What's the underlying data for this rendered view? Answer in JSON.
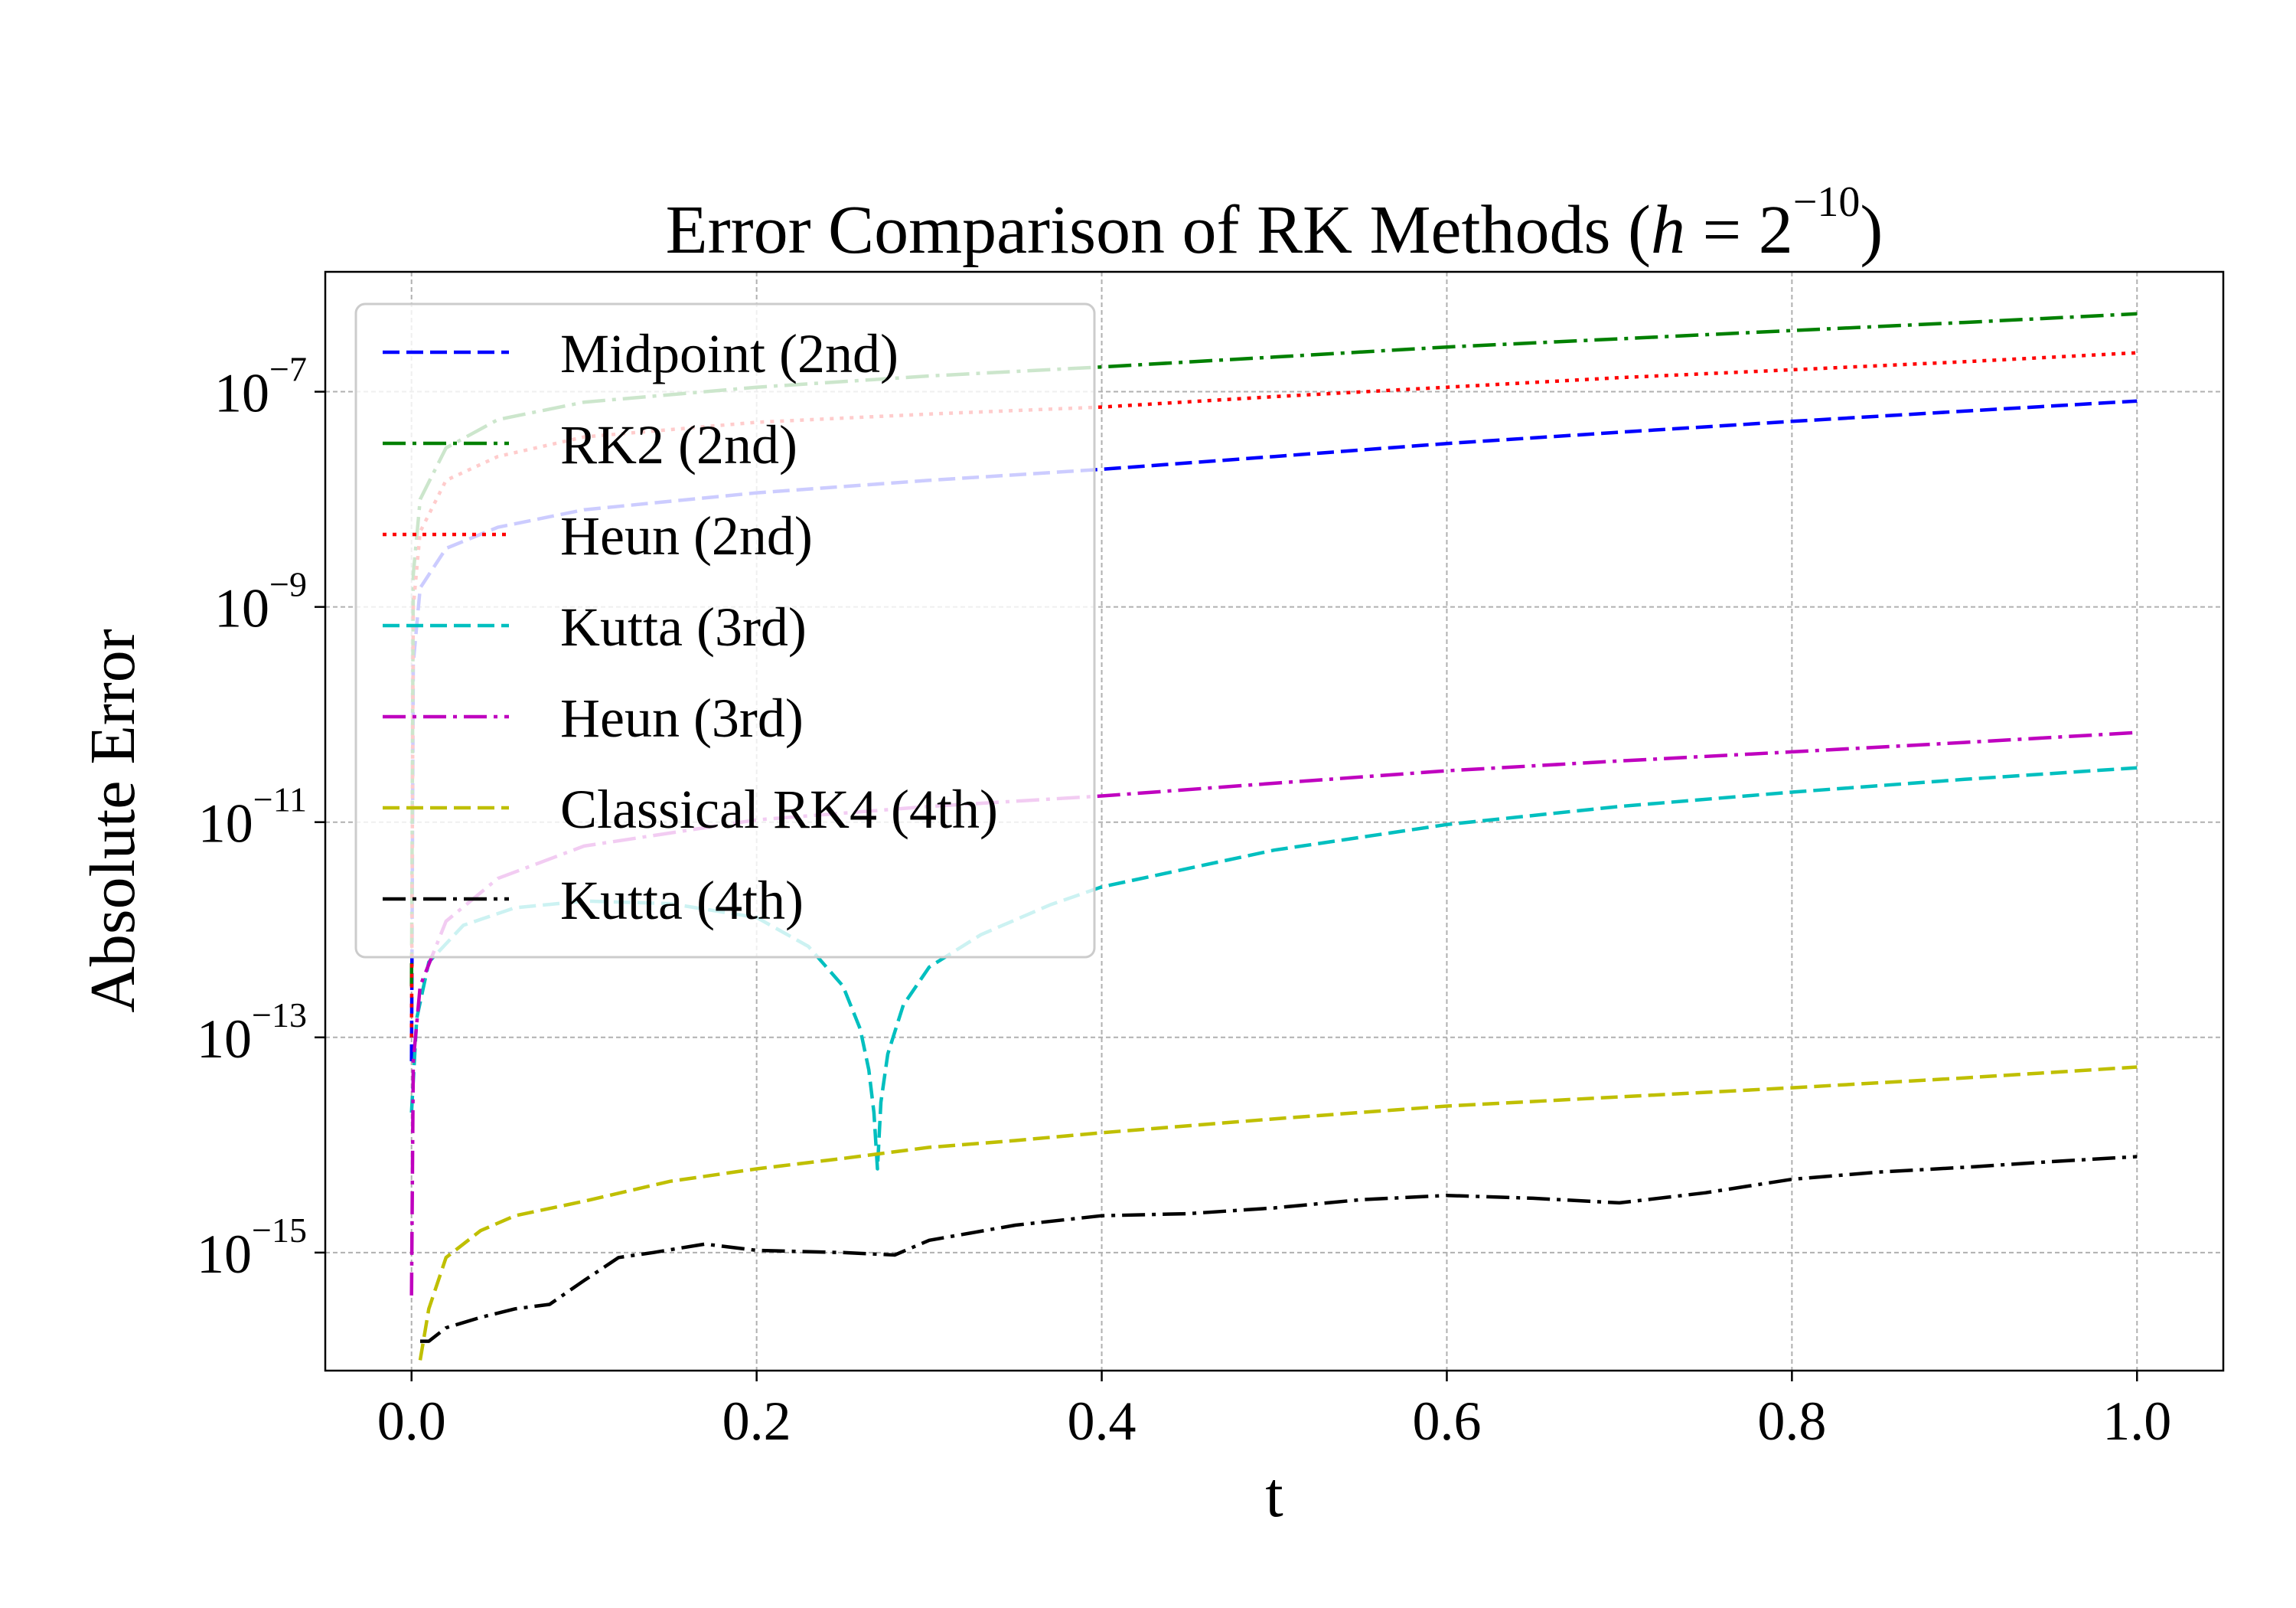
{
  "chart_data": {
    "type": "line",
    "title": "Error Comparison of RK Methods (",
    "title_h": "h",
    "title_eq": " = 2",
    "title_exp": "−10",
    "title_close": ")",
    "xlabel": "t",
    "ylabel": "Absolute Error",
    "yscale": "log",
    "xlim": [
      -0.05,
      1.05
    ],
    "ylim": [
      8e-17,
      1.3e-06
    ],
    "grid": true,
    "legend_position": "upper-left",
    "x_ticks": [
      {
        "value": 0.0,
        "label": "0.0"
      },
      {
        "value": 0.2,
        "label": "0.2"
      },
      {
        "value": 0.4,
        "label": "0.4"
      },
      {
        "value": 0.6,
        "label": "0.6"
      },
      {
        "value": 0.8,
        "label": "0.8"
      },
      {
        "value": 1.0,
        "label": "1.0"
      }
    ],
    "y_ticks": [
      {
        "value": 1e-07,
        "base": "10",
        "exp": "−7"
      },
      {
        "value": 1e-09,
        "base": "10",
        "exp": "−9"
      },
      {
        "value": 1e-11,
        "base": "10",
        "exp": "−11"
      },
      {
        "value": 1e-13,
        "base": "10",
        "exp": "−13"
      },
      {
        "value": 1e-15,
        "base": "10",
        "exp": "−15"
      }
    ],
    "series": [
      {
        "name": "Midpoint (2nd)",
        "color": "#0000ff",
        "dash": "dashed",
        "points": [
          [
            0.0,
            6e-14
          ],
          [
            0.001,
            3e-10
          ],
          [
            0.005,
            1.5e-09
          ],
          [
            0.02,
            3.5e-09
          ],
          [
            0.05,
            5.5e-09
          ],
          [
            0.1,
            8e-09
          ],
          [
            0.2,
            1.15e-08
          ],
          [
            0.3,
            1.5e-08
          ],
          [
            0.4,
            1.9e-08
          ],
          [
            0.5,
            2.5e-08
          ],
          [
            0.6,
            3.3e-08
          ],
          [
            0.7,
            4.2e-08
          ],
          [
            0.8,
            5.3e-08
          ],
          [
            0.9,
            6.6e-08
          ],
          [
            1.0,
            8.2e-08
          ]
        ]
      },
      {
        "name": "RK2 (2nd)",
        "color": "#008000",
        "dash": "dashdot",
        "points": [
          [
            0.0,
            3e-13
          ],
          [
            0.001,
            2e-09
          ],
          [
            0.005,
            1e-08
          ],
          [
            0.02,
            3e-08
          ],
          [
            0.05,
            5.5e-08
          ],
          [
            0.1,
            8e-08
          ],
          [
            0.2,
            1.1e-07
          ],
          [
            0.3,
            1.4e-07
          ],
          [
            0.4,
            1.7e-07
          ],
          [
            0.5,
            2.1e-07
          ],
          [
            0.6,
            2.6e-07
          ],
          [
            0.7,
            3.1e-07
          ],
          [
            0.8,
            3.7e-07
          ],
          [
            0.9,
            4.4e-07
          ],
          [
            1.0,
            5.3e-07
          ]
        ]
      },
      {
        "name": "Heun (2nd)",
        "color": "#ff0000",
        "dash": "dotted",
        "points": [
          [
            0.0,
            1e-13
          ],
          [
            0.001,
            1e-09
          ],
          [
            0.005,
            5e-09
          ],
          [
            0.02,
            1.5e-08
          ],
          [
            0.05,
            2.5e-08
          ],
          [
            0.1,
            3.8e-08
          ],
          [
            0.2,
            5.2e-08
          ],
          [
            0.3,
            6.2e-08
          ],
          [
            0.4,
            7.2e-08
          ],
          [
            0.5,
            9e-08
          ],
          [
            0.6,
            1.1e-07
          ],
          [
            0.7,
            1.35e-07
          ],
          [
            0.8,
            1.6e-07
          ],
          [
            0.9,
            1.9e-07
          ],
          [
            1.0,
            2.3e-07
          ]
        ]
      },
      {
        "name": "Kutta (3rd)",
        "color": "#00bfbf",
        "dash": "dashed",
        "points": [
          [
            0.0,
            2e-14
          ],
          [
            0.003,
            1.5e-13
          ],
          [
            0.01,
            5e-13
          ],
          [
            0.03,
            1.1e-12
          ],
          [
            0.06,
            1.6e-12
          ],
          [
            0.1,
            1.85e-12
          ],
          [
            0.15,
            1.75e-12
          ],
          [
            0.2,
            1.3e-12
          ],
          [
            0.23,
            7e-13
          ],
          [
            0.25,
            3e-13
          ],
          [
            0.26,
            1.2e-13
          ],
          [
            0.265,
            5e-14
          ],
          [
            0.268,
            2e-14
          ],
          [
            0.27,
            6e-15
          ],
          [
            0.272,
            2.5e-14
          ],
          [
            0.276,
            7e-14
          ],
          [
            0.285,
            2e-13
          ],
          [
            0.3,
            4.5e-13
          ],
          [
            0.33,
            9e-13
          ],
          [
            0.37,
            1.7e-12
          ],
          [
            0.4,
            2.5e-12
          ],
          [
            0.5,
            5.5e-12
          ],
          [
            0.6,
            9.5e-12
          ],
          [
            0.7,
            1.4e-11
          ],
          [
            0.8,
            1.9e-11
          ],
          [
            0.9,
            2.5e-11
          ],
          [
            1.0,
            3.2e-11
          ]
        ]
      },
      {
        "name": "Heun (3rd)",
        "color": "#bf00bf",
        "dash": "dashdot",
        "points": [
          [
            0.0,
            4e-16
          ],
          [
            0.001,
            6e-14
          ],
          [
            0.005,
            3e-13
          ],
          [
            0.02,
            1.2e-12
          ],
          [
            0.05,
            3e-12
          ],
          [
            0.1,
            6e-12
          ],
          [
            0.2,
            1.05e-11
          ],
          [
            0.3,
            1.4e-11
          ],
          [
            0.4,
            1.75e-11
          ],
          [
            0.5,
            2.3e-11
          ],
          [
            0.6,
            3e-11
          ],
          [
            0.7,
            3.7e-11
          ],
          [
            0.8,
            4.5e-11
          ],
          [
            0.9,
            5.5e-11
          ],
          [
            1.0,
            6.8e-11
          ]
        ]
      },
      {
        "name": "Classical RK4 (4th)",
        "color": "#bfbf00",
        "dash": "dashed",
        "points": [
          [
            0.005,
            1e-16
          ],
          [
            0.01,
            3e-16
          ],
          [
            0.02,
            9e-16
          ],
          [
            0.04,
            1.6e-15
          ],
          [
            0.06,
            2.2e-15
          ],
          [
            0.1,
            3e-15
          ],
          [
            0.15,
            4.6e-15
          ],
          [
            0.2,
            6e-15
          ],
          [
            0.25,
            7.5e-15
          ],
          [
            0.3,
            9.5e-15
          ],
          [
            0.35,
            1.1e-14
          ],
          [
            0.4,
            1.3e-14
          ],
          [
            0.5,
            1.75e-14
          ],
          [
            0.6,
            2.3e-14
          ],
          [
            0.7,
            2.8e-14
          ],
          [
            0.8,
            3.4e-14
          ],
          [
            0.9,
            4.2e-14
          ],
          [
            1.0,
            5.3e-14
          ]
        ]
      },
      {
        "name": "Kutta (4th)",
        "color": "#000000",
        "dash": "dashdot",
        "points": [
          [
            0.005,
            1.5e-16
          ],
          [
            0.01,
            1.5e-16
          ],
          [
            0.02,
            2e-16
          ],
          [
            0.04,
            2.5e-16
          ],
          [
            0.06,
            3e-16
          ],
          [
            0.08,
            3.3e-16
          ],
          [
            0.1,
            5.5e-16
          ],
          [
            0.12,
            9e-16
          ],
          [
            0.14,
            1e-15
          ],
          [
            0.17,
            1.2e-15
          ],
          [
            0.2,
            1.05e-15
          ],
          [
            0.25,
            1e-15
          ],
          [
            0.28,
            9.5e-16
          ],
          [
            0.3,
            1.3e-15
          ],
          [
            0.35,
            1.8e-15
          ],
          [
            0.4,
            2.2e-15
          ],
          [
            0.45,
            2.3e-15
          ],
          [
            0.5,
            2.6e-15
          ],
          [
            0.55,
            3.1e-15
          ],
          [
            0.6,
            3.4e-15
          ],
          [
            0.65,
            3.2e-15
          ],
          [
            0.7,
            2.9e-15
          ],
          [
            0.75,
            3.6e-15
          ],
          [
            0.8,
            4.8e-15
          ],
          [
            0.85,
            5.6e-15
          ],
          [
            0.9,
            6.2e-15
          ],
          [
            0.95,
            7e-15
          ],
          [
            1.0,
            7.8e-15
          ]
        ]
      }
    ]
  }
}
